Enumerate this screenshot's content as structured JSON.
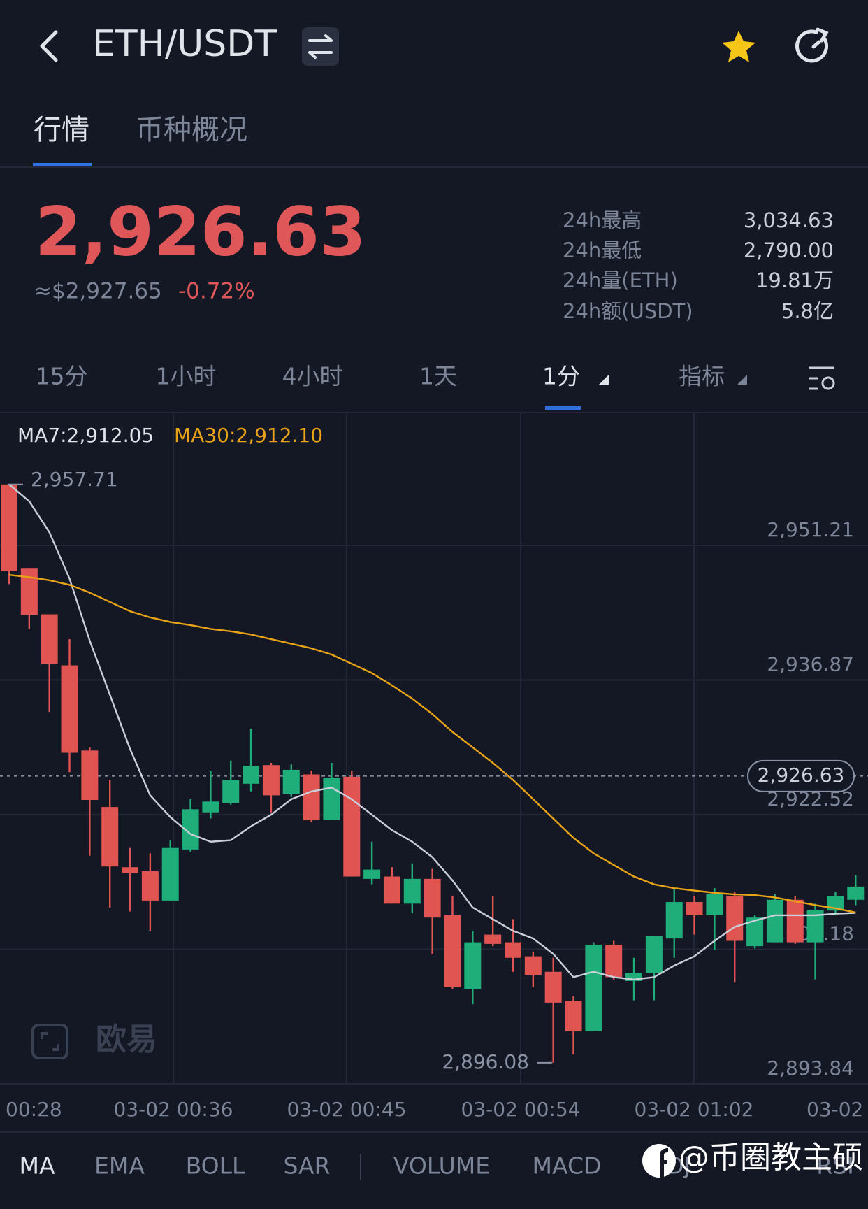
{
  "header": {
    "pair": "ETH/USDT"
  },
  "tabs": [
    "行情",
    "币种概况"
  ],
  "price": {
    "last": "2,926.63",
    "usd": "≈$2,927.65",
    "change": "-0.72%"
  },
  "stats": [
    {
      "label": "24h最高",
      "value": "3,034.63"
    },
    {
      "label": "24h最低",
      "value": "2,790.00"
    },
    {
      "label": "24h量(ETH)",
      "value": "19.81万"
    },
    {
      "label": "24h额(USDT)",
      "value": "5.8亿"
    }
  ],
  "timeframes": [
    "15分",
    "1小时",
    "4小时",
    "1天",
    "1分",
    "指标"
  ],
  "chart_data": {
    "type": "candlestick",
    "series": [
      {
        "name": "MA7:2,912.05",
        "color": "#c9ced8",
        "values": [
          2957.72,
          2955.91,
          2952.61,
          2947.67,
          2941.07,
          2935.3,
          2929.53,
          2924.58,
          2922.27,
          2920.46,
          2919.64,
          2919.8,
          2921.28,
          2922.52,
          2924.17,
          2924.99,
          2925.41,
          2924.17,
          2922.52,
          2920.87,
          2919.64,
          2917.99,
          2915.51,
          2912.63,
          2911.39,
          2910.15,
          2909.33,
          2907.68,
          2905.21,
          2905.79,
          2905.21,
          2904.96,
          2905.21,
          2906.44,
          2907.43,
          2909.08,
          2910.57,
          2911.23,
          2911.8,
          2911.8,
          2911.8,
          2911.97,
          2912.05
        ]
      },
      {
        "name": "MA30:2,912.10",
        "color": "#e8a317",
        "values": [
          2948.08,
          2947.83,
          2947.5,
          2947.01,
          2946.18,
          2945.19,
          2944.2,
          2943.54,
          2943.05,
          2942.72,
          2942.31,
          2942.06,
          2941.73,
          2941.23,
          2940.74,
          2940.25,
          2939.59,
          2938.6,
          2937.61,
          2936.29,
          2934.89,
          2933.24,
          2931.34,
          2929.69,
          2928.04,
          2926.23,
          2924.17,
          2922.11,
          2920.05,
          2918.4,
          2917.16,
          2915.93,
          2915.1,
          2914.69,
          2914.44,
          2914.19,
          2914.03,
          2913.95,
          2913.7,
          2913.29,
          2912.88,
          2912.55,
          2912.1
        ]
      }
    ],
    "open": [
      2957.71,
      2948.74,
      2943.87,
      2938.43,
      2929.36,
      2923.34,
      2916.92,
      2916.5,
      2913.37,
      2918.81,
      2922.77,
      2923.76,
      2925.82,
      2927.8,
      2924.75,
      2926.81,
      2921.94,
      2926.56,
      2915.68,
      2915.93,
      2913.04,
      2915.68,
      2911.8,
      2903.97,
      2909.74,
      2908.92,
      2907.43,
      2905.78,
      2902.65,
      2899.44,
      2908.67,
      2904.8,
      2905.62,
      2909.33,
      2913.21,
      2911.8,
      2913.86,
      2908.51,
      2908.92,
      2913.45,
      2908.92,
      2912.3,
      2913.45
    ],
    "high": [
      2957.71,
      2948.74,
      2943.87,
      2941.23,
      2929.69,
      2926.23,
      2918.97,
      2918.4,
      2919.8,
      2924.17,
      2927.22,
      2928.29,
      2931.67,
      2928.04,
      2927.88,
      2927.22,
      2928.04,
      2927.22,
      2919.63,
      2916.92,
      2917.33,
      2916.75,
      2913.86,
      2910.16,
      2913.86,
      2911.39,
      2907.93,
      2907.27,
      2903.15,
      2908.92,
      2909.08,
      2907.27,
      2909.58,
      2914.69,
      2913.86,
      2914.69,
      2914.28,
      2911.8,
      2914.03,
      2913.86,
      2913.04,
      2914.28,
      2916.09
    ],
    "low": [
      2947.09,
      2942.31,
      2933.48,
      2927.05,
      2918.15,
      2912.63,
      2912.22,
      2910.16,
      2913.37,
      2918.56,
      2922.11,
      2923.59,
      2925.0,
      2922.77,
      2924.42,
      2921.7,
      2921.94,
      2915.93,
      2915.1,
      2913.04,
      2912.05,
      2907.68,
      2903.97,
      2902.32,
      2908.51,
      2905.78,
      2904.14,
      2896.08,
      2896.96,
      2899.44,
      2904.96,
      2902.74,
      2902.74,
      2907.27,
      2909.74,
      2908.09,
      2904.63,
      2908.26,
      2908.92,
      2908.75,
      2904.96,
      2911.8,
      2912.88
    ],
    "close": [
      2948.49,
      2943.79,
      2938.6,
      2929.12,
      2924.09,
      2917.0,
      2916.34,
      2913.37,
      2918.97,
      2923.1,
      2923.92,
      2926.23,
      2927.71,
      2924.58,
      2927.3,
      2921.94,
      2926.4,
      2915.93,
      2916.67,
      2913.04,
      2915.68,
      2911.56,
      2904.14,
      2908.92,
      2908.75,
      2907.27,
      2905.45,
      2902.49,
      2899.44,
      2908.67,
      2905.21,
      2905.62,
      2909.58,
      2913.21,
      2911.8,
      2914.03,
      2909.08,
      2911.56,
      2913.45,
      2908.92,
      2912.38,
      2913.86,
      2914.86
    ],
    "up_color": "#1fae7a",
    "down_color": "#e05452",
    "ylim": [
      2893.84,
      2965.37
    ],
    "yticks": [
      {
        "value": 2951.21,
        "label": "2,951.21"
      },
      {
        "value": 2936.87,
        "label": "2,936.87"
      },
      {
        "value": 2922.52,
        "label": "2,922.52"
      },
      {
        "value": 2908.18,
        "label": "2,908.18"
      },
      {
        "value": 2893.84,
        "label": "2,893.84"
      }
    ],
    "x_labels": [
      "00:28",
      "03-02 00:36",
      "03-02 00:45",
      "03-02 00:54",
      "03-02 01:02",
      "03-02"
    ],
    "high_marker": {
      "value": 2957.71,
      "label": "2,957.71"
    },
    "low_marker": {
      "value": 2896.08,
      "label": "2,896.08"
    },
    "last_price": {
      "value": 2926.63,
      "label": "2,926.63"
    },
    "grid": true
  },
  "brand": "欧易",
  "indicator_tabs": [
    "MA",
    "EMA",
    "BOLL",
    "SAR",
    "VOLUME",
    "MACD",
    "KDJ",
    "RSI"
  ],
  "watermark": "@币圈教主硕"
}
